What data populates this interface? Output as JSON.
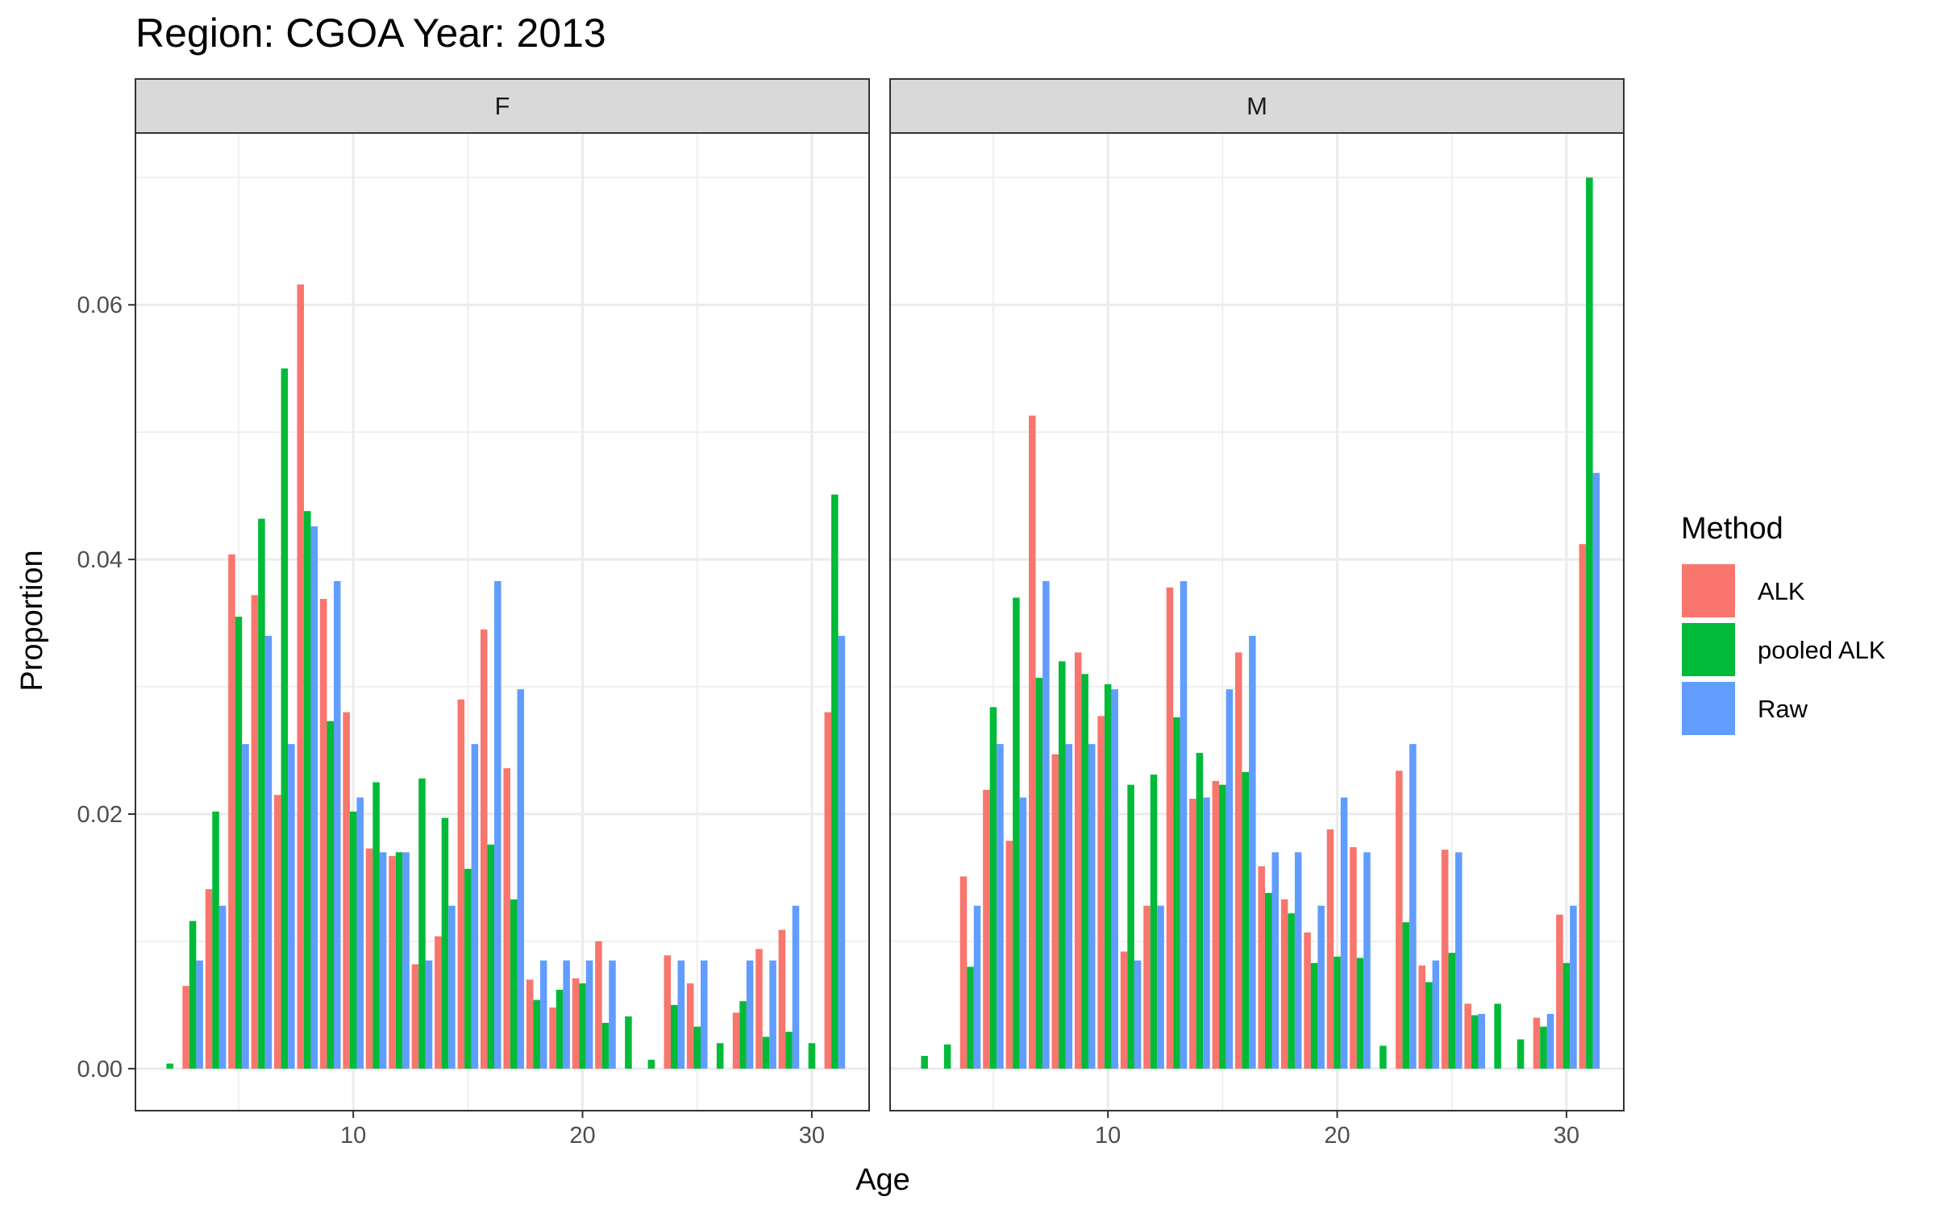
{
  "chart_data": {
    "type": "bar",
    "title": "Region: CGOA Year: 2013",
    "xlabel": "Age",
    "ylabel": "Proportion",
    "x_ticks": [
      "10",
      "20",
      "30"
    ],
    "y_ticks": [
      "0.00",
      "0.02",
      "0.04",
      "0.06"
    ],
    "xlim": [
      0.5,
      32.5
    ],
    "ylim": [
      -0.0033,
      0.0735
    ],
    "grid": true,
    "facet_labels": [
      "F",
      "M"
    ],
    "legend": {
      "title": "Method",
      "placement": "right",
      "entries": [
        {
          "name": "ALK",
          "color": "#F8766D"
        },
        {
          "name": "pooled ALK",
          "color": "#00BA38"
        },
        {
          "name": "Raw",
          "color": "#619CFF"
        }
      ]
    },
    "panels": [
      {
        "facet": "F",
        "series": [
          {
            "name": "ALK",
            "color": "#F8766D",
            "points": [
              [
                3,
                0.0065
              ],
              [
                4,
                0.0141
              ],
              [
                5,
                0.0404
              ],
              [
                6,
                0.0372
              ],
              [
                7,
                0.0215
              ],
              [
                8,
                0.0616
              ],
              [
                9,
                0.0369
              ],
              [
                10,
                0.028
              ],
              [
                11,
                0.0173
              ],
              [
                12,
                0.0167
              ],
              [
                13,
                0.0082
              ],
              [
                14,
                0.0104
              ],
              [
                15,
                0.029
              ],
              [
                16,
                0.0345
              ],
              [
                17,
                0.0236
              ],
              [
                18,
                0.007
              ],
              [
                19,
                0.0048
              ],
              [
                20,
                0.0071
              ],
              [
                21,
                0.01
              ],
              [
                24,
                0.0089
              ],
              [
                25,
                0.0067
              ],
              [
                27,
                0.0044
              ],
              [
                28,
                0.0094
              ],
              [
                29,
                0.0109
              ],
              [
                31,
                0.028
              ]
            ]
          },
          {
            "name": "pooled ALK",
            "color": "#00BA38",
            "points": [
              [
                2,
                0.0004
              ],
              [
                3,
                0.0116
              ],
              [
                4,
                0.0202
              ],
              [
                5,
                0.0355
              ],
              [
                6,
                0.0432
              ],
              [
                7,
                0.055
              ],
              [
                8,
                0.0438
              ],
              [
                9,
                0.0273
              ],
              [
                10,
                0.0202
              ],
              [
                11,
                0.0225
              ],
              [
                12,
                0.017
              ],
              [
                13,
                0.0228
              ],
              [
                14,
                0.0197
              ],
              [
                15,
                0.0157
              ],
              [
                16,
                0.0176
              ],
              [
                17,
                0.0133
              ],
              [
                18,
                0.0054
              ],
              [
                19,
                0.0062
              ],
              [
                20,
                0.0067
              ],
              [
                21,
                0.0036
              ],
              [
                22,
                0.0041
              ],
              [
                23,
                0.0007
              ],
              [
                24,
                0.005
              ],
              [
                25,
                0.0033
              ],
              [
                26,
                0.002
              ],
              [
                27,
                0.0053
              ],
              [
                28,
                0.0025
              ],
              [
                29,
                0.0029
              ],
              [
                30,
                0.002
              ],
              [
                31,
                0.0451
              ]
            ]
          },
          {
            "name": "Raw",
            "color": "#619CFF",
            "points": [
              [
                3,
                0.0085
              ],
              [
                4,
                0.0128
              ],
              [
                5,
                0.0255
              ],
              [
                6,
                0.034
              ],
              [
                7,
                0.0255
              ],
              [
                8,
                0.0426
              ],
              [
                9,
                0.0383
              ],
              [
                10,
                0.0213
              ],
              [
                11,
                0.017
              ],
              [
                12,
                0.017
              ],
              [
                13,
                0.0085
              ],
              [
                14,
                0.0128
              ],
              [
                15,
                0.0255
              ],
              [
                16,
                0.0383
              ],
              [
                17,
                0.0298
              ],
              [
                18,
                0.0085
              ],
              [
                19,
                0.0085
              ],
              [
                20,
                0.0085
              ],
              [
                21,
                0.0085
              ],
              [
                24,
                0.0085
              ],
              [
                25,
                0.0085
              ],
              [
                27,
                0.0085
              ],
              [
                28,
                0.0085
              ],
              [
                29,
                0.0128
              ],
              [
                31,
                0.034
              ]
            ]
          }
        ]
      },
      {
        "facet": "M",
        "series": [
          {
            "name": "ALK",
            "color": "#F8766D",
            "points": [
              [
                4,
                0.0151
              ],
              [
                5,
                0.0219
              ],
              [
                6,
                0.0179
              ],
              [
                7,
                0.0513
              ],
              [
                8,
                0.0247
              ],
              [
                9,
                0.0327
              ],
              [
                10,
                0.0277
              ],
              [
                11,
                0.0092
              ],
              [
                12,
                0.0128
              ],
              [
                13,
                0.0378
              ],
              [
                14,
                0.0212
              ],
              [
                15,
                0.0226
              ],
              [
                16,
                0.0327
              ],
              [
                17,
                0.0159
              ],
              [
                18,
                0.0133
              ],
              [
                19,
                0.0107
              ],
              [
                20,
                0.0188
              ],
              [
                21,
                0.0174
              ],
              [
                23,
                0.0234
              ],
              [
                24,
                0.0081
              ],
              [
                25,
                0.0172
              ],
              [
                26,
                0.0051
              ],
              [
                29,
                0.004
              ],
              [
                30,
                0.0121
              ],
              [
                31,
                0.0412
              ]
            ]
          },
          {
            "name": "pooled ALK",
            "color": "#00BA38",
            "points": [
              [
                2,
                0.001
              ],
              [
                3,
                0.0019
              ],
              [
                4,
                0.008
              ],
              [
                5,
                0.0284
              ],
              [
                6,
                0.037
              ],
              [
                7,
                0.0307
              ],
              [
                8,
                0.032
              ],
              [
                9,
                0.031
              ],
              [
                10,
                0.0302
              ],
              [
                11,
                0.0223
              ],
              [
                12,
                0.0231
              ],
              [
                13,
                0.0276
              ],
              [
                14,
                0.0248
              ],
              [
                15,
                0.0223
              ],
              [
                16,
                0.0233
              ],
              [
                17,
                0.0138
              ],
              [
                18,
                0.0122
              ],
              [
                19,
                0.0083
              ],
              [
                20,
                0.0088
              ],
              [
                21,
                0.0087
              ],
              [
                22,
                0.0018
              ],
              [
                23,
                0.0115
              ],
              [
                24,
                0.0068
              ],
              [
                25,
                0.0091
              ],
              [
                26,
                0.0042
              ],
              [
                27,
                0.0051
              ],
              [
                28,
                0.0023
              ],
              [
                29,
                0.0033
              ],
              [
                30,
                0.0083
              ],
              [
                31,
                0.07
              ]
            ]
          },
          {
            "name": "Raw",
            "color": "#619CFF",
            "points": [
              [
                4,
                0.0128
              ],
              [
                5,
                0.0255
              ],
              [
                6,
                0.0213
              ],
              [
                7,
                0.0383
              ],
              [
                8,
                0.0255
              ],
              [
                9,
                0.0255
              ],
              [
                10,
                0.0298
              ],
              [
                11,
                0.0085
              ],
              [
                12,
                0.0128
              ],
              [
                13,
                0.0383
              ],
              [
                14,
                0.0213
              ],
              [
                15,
                0.0298
              ],
              [
                16,
                0.034
              ],
              [
                17,
                0.017
              ],
              [
                18,
                0.017
              ],
              [
                19,
                0.0128
              ],
              [
                20,
                0.0213
              ],
              [
                21,
                0.017
              ],
              [
                23,
                0.0255
              ],
              [
                24,
                0.0085
              ],
              [
                25,
                0.017
              ],
              [
                26,
                0.0043
              ],
              [
                29,
                0.0043
              ],
              [
                30,
                0.0128
              ],
              [
                31,
                0.0468
              ]
            ]
          }
        ]
      }
    ]
  }
}
